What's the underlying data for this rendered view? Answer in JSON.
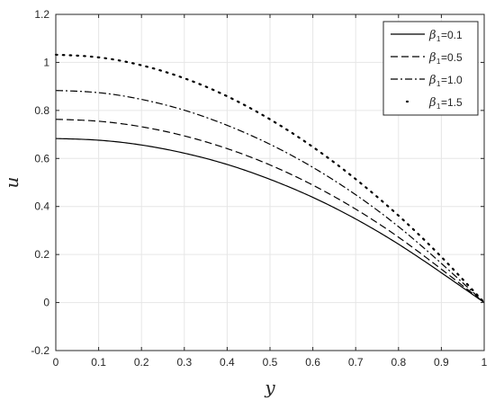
{
  "chart_data": {
    "type": "line",
    "xlabel": "y",
    "ylabel": "u",
    "xlim": [
      0,
      1
    ],
    "ylim": [
      -0.2,
      1.2
    ],
    "xticks": [
      "0",
      "0.1",
      "0.2",
      "0.3",
      "0.4",
      "0.5",
      "0.6",
      "0.7",
      "0.8",
      "0.9",
      "1"
    ],
    "yticks": [
      "-0.2",
      "0",
      "0.2",
      "0.4",
      "0.6",
      "0.8",
      "1",
      "1.2"
    ],
    "grid": true,
    "legend_position": "top-right",
    "x": [
      0,
      0.1,
      0.2,
      0.3,
      0.4,
      0.5,
      0.6,
      0.7,
      0.8,
      0.9,
      1.0
    ],
    "series": [
      {
        "name": "=0.1",
        "symbol": "β",
        "subscript": "1",
        "style": "solid",
        "values": [
          0.683,
          0.676,
          0.656,
          0.622,
          0.575,
          0.513,
          0.438,
          0.348,
          0.243,
          0.124,
          0.0
        ]
      },
      {
        "name": "=0.5",
        "symbol": "β",
        "subscript": "1",
        "style": "dashed",
        "values": [
          0.763,
          0.755,
          0.732,
          0.694,
          0.641,
          0.573,
          0.489,
          0.389,
          0.272,
          0.139,
          0.0
        ]
      },
      {
        "name": "=1.0",
        "symbol": "β",
        "subscript": "1",
        "style": "dashdot",
        "values": [
          0.883,
          0.874,
          0.846,
          0.801,
          0.738,
          0.659,
          0.563,
          0.449,
          0.316,
          0.163,
          0.0
        ]
      },
      {
        "name": "=1.5",
        "symbol": "β",
        "subscript": "1",
        "style": "dotted",
        "values": [
          1.032,
          1.021,
          0.988,
          0.934,
          0.859,
          0.763,
          0.648,
          0.514,
          0.362,
          0.19,
          0.0
        ]
      }
    ]
  }
}
